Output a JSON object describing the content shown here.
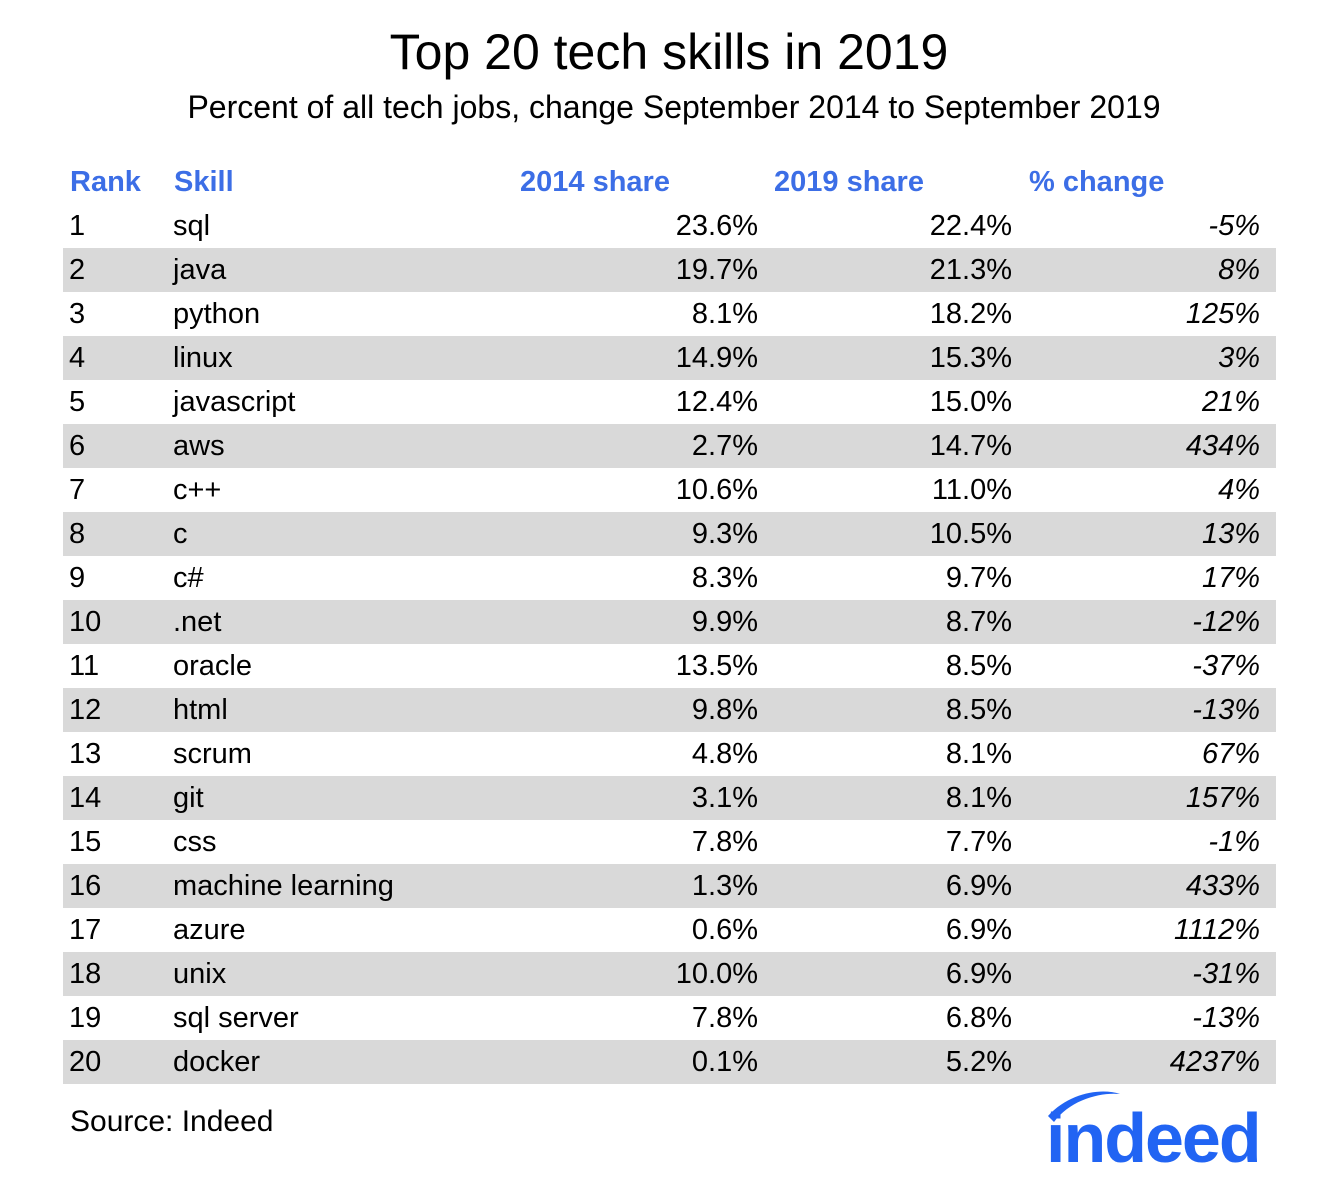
{
  "header": {
    "title": "Top 20 tech skills in 2019",
    "subtitle": "Percent of all tech jobs, change September 2014 to September 2019"
  },
  "colors": {
    "header_blue": "#3c6ee6",
    "row_shade": "#d9d9d9",
    "logo_blue": "#2164f3"
  },
  "chart_data": {
    "type": "table",
    "title": "Top 20 tech skills in 2019",
    "subtitle": "Percent of all tech jobs, change September 2014 to September 2019",
    "columns": [
      "Rank",
      "Skill",
      "2014 share",
      "2019 share",
      "% change"
    ],
    "rows": [
      {
        "rank": "1",
        "skill": "sql",
        "share_2014": "23.6%",
        "share_2019": "22.4%",
        "change": "-5%"
      },
      {
        "rank": "2",
        "skill": "java",
        "share_2014": "19.7%",
        "share_2019": "21.3%",
        "change": "8%"
      },
      {
        "rank": "3",
        "skill": "python",
        "share_2014": "8.1%",
        "share_2019": "18.2%",
        "change": "125%"
      },
      {
        "rank": "4",
        "skill": "linux",
        "share_2014": "14.9%",
        "share_2019": "15.3%",
        "change": "3%"
      },
      {
        "rank": "5",
        "skill": "javascript",
        "share_2014": "12.4%",
        "share_2019": "15.0%",
        "change": "21%"
      },
      {
        "rank": "6",
        "skill": "aws",
        "share_2014": "2.7%",
        "share_2019": "14.7%",
        "change": "434%"
      },
      {
        "rank": "7",
        "skill": "c++",
        "share_2014": "10.6%",
        "share_2019": "11.0%",
        "change": "4%"
      },
      {
        "rank": "8",
        "skill": "c",
        "share_2014": "9.3%",
        "share_2019": "10.5%",
        "change": "13%"
      },
      {
        "rank": "9",
        "skill": "c#",
        "share_2014": "8.3%",
        "share_2019": "9.7%",
        "change": "17%"
      },
      {
        "rank": "10",
        "skill": ".net",
        "share_2014": "9.9%",
        "share_2019": "8.7%",
        "change": "-12%"
      },
      {
        "rank": "11",
        "skill": "oracle",
        "share_2014": "13.5%",
        "share_2019": "8.5%",
        "change": "-37%"
      },
      {
        "rank": "12",
        "skill": "html",
        "share_2014": "9.8%",
        "share_2019": "8.5%",
        "change": "-13%"
      },
      {
        "rank": "13",
        "skill": "scrum",
        "share_2014": "4.8%",
        "share_2019": "8.1%",
        "change": "67%"
      },
      {
        "rank": "14",
        "skill": "git",
        "share_2014": "3.1%",
        "share_2019": "8.1%",
        "change": "157%"
      },
      {
        "rank": "15",
        "skill": "css",
        "share_2014": "7.8%",
        "share_2019": "7.7%",
        "change": "-1%"
      },
      {
        "rank": "16",
        "skill": "machine learning",
        "share_2014": "1.3%",
        "share_2019": "6.9%",
        "change": "433%"
      },
      {
        "rank": "17",
        "skill": "azure",
        "share_2014": "0.6%",
        "share_2019": "6.9%",
        "change": "1112%"
      },
      {
        "rank": "18",
        "skill": "unix",
        "share_2014": "10.0%",
        "share_2019": "6.9%",
        "change": "-31%"
      },
      {
        "rank": "19",
        "skill": "sql server",
        "share_2014": "7.8%",
        "share_2019": "6.8%",
        "change": "-13%"
      },
      {
        "rank": "20",
        "skill": "docker",
        "share_2014": "0.1%",
        "share_2019": "5.2%",
        "change": "4237%"
      }
    ]
  },
  "footer": {
    "source": "Source: Indeed",
    "logo_text": "indeed",
    "logo_icon": "indeed-logo-icon"
  }
}
